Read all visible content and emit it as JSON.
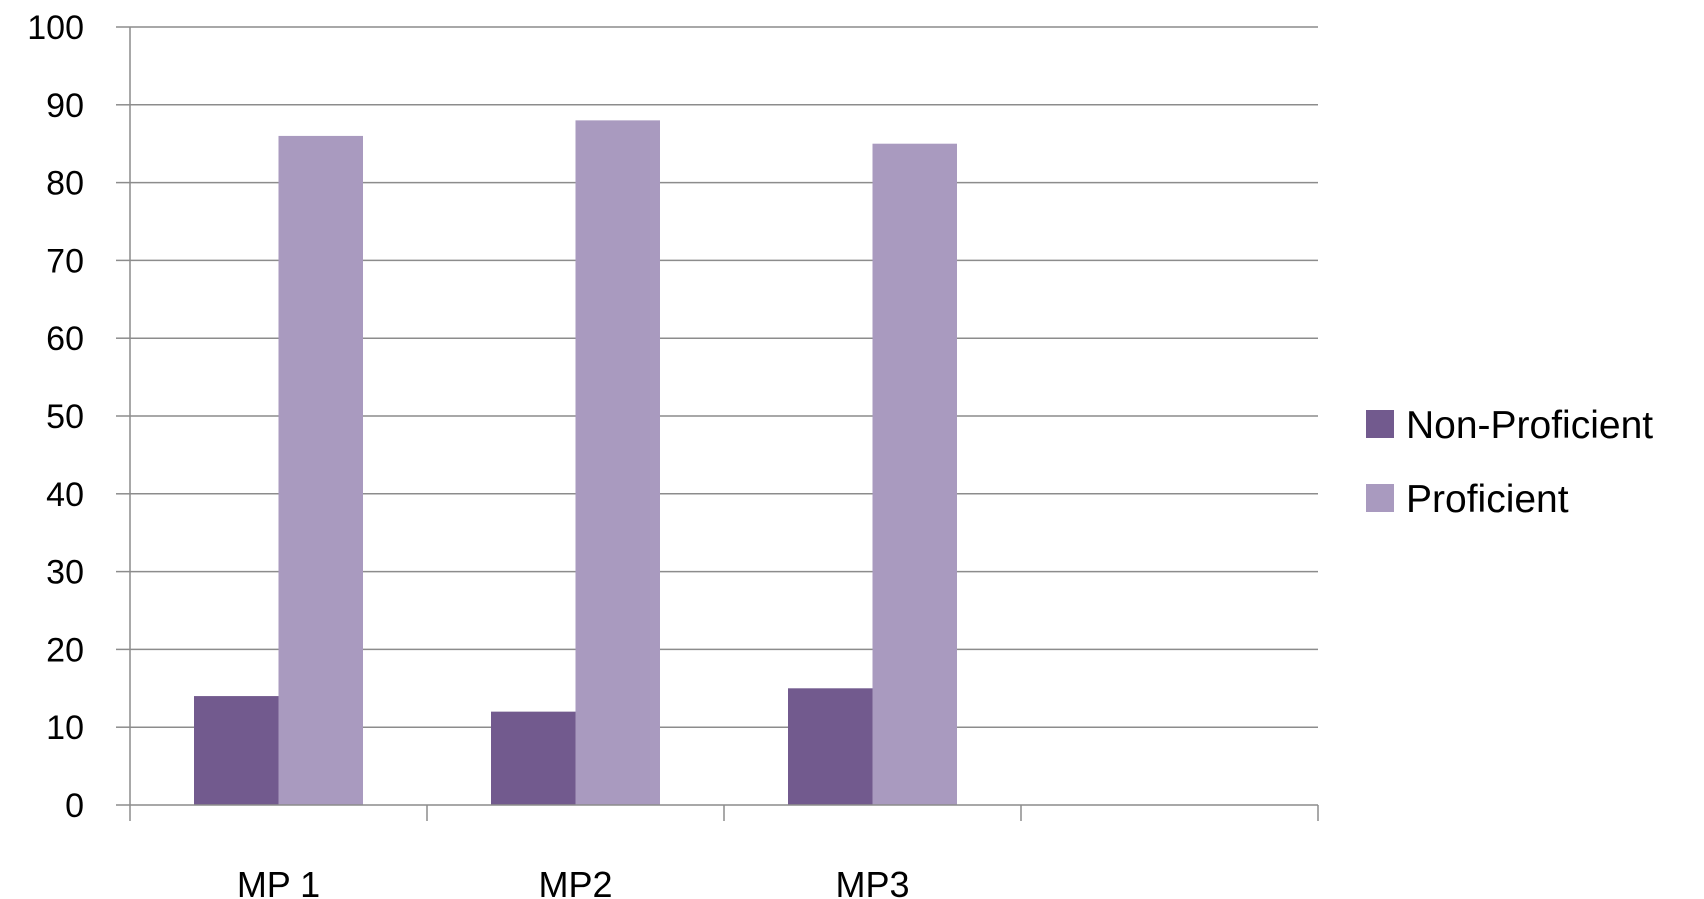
{
  "chart_data": {
    "type": "bar",
    "title": "",
    "xlabel": "",
    "ylabel": "",
    "categories": [
      "MP 1",
      "MP2",
      "MP3",
      ""
    ],
    "series": [
      {
        "name": "Non-Proficient",
        "color": "#725a8e",
        "values": [
          14,
          12,
          15,
          null
        ]
      },
      {
        "name": "Proficient",
        "color": "#a99abf",
        "values": [
          86,
          88,
          85,
          null
        ]
      }
    ],
    "ylim": [
      0,
      100
    ],
    "yticks": [
      "0",
      "10",
      "20",
      "30",
      "40",
      "50",
      "60",
      "70",
      "80",
      "90",
      "100"
    ],
    "grid": true,
    "legend": "right",
    "gridline_color": "#8c8c8c"
  }
}
